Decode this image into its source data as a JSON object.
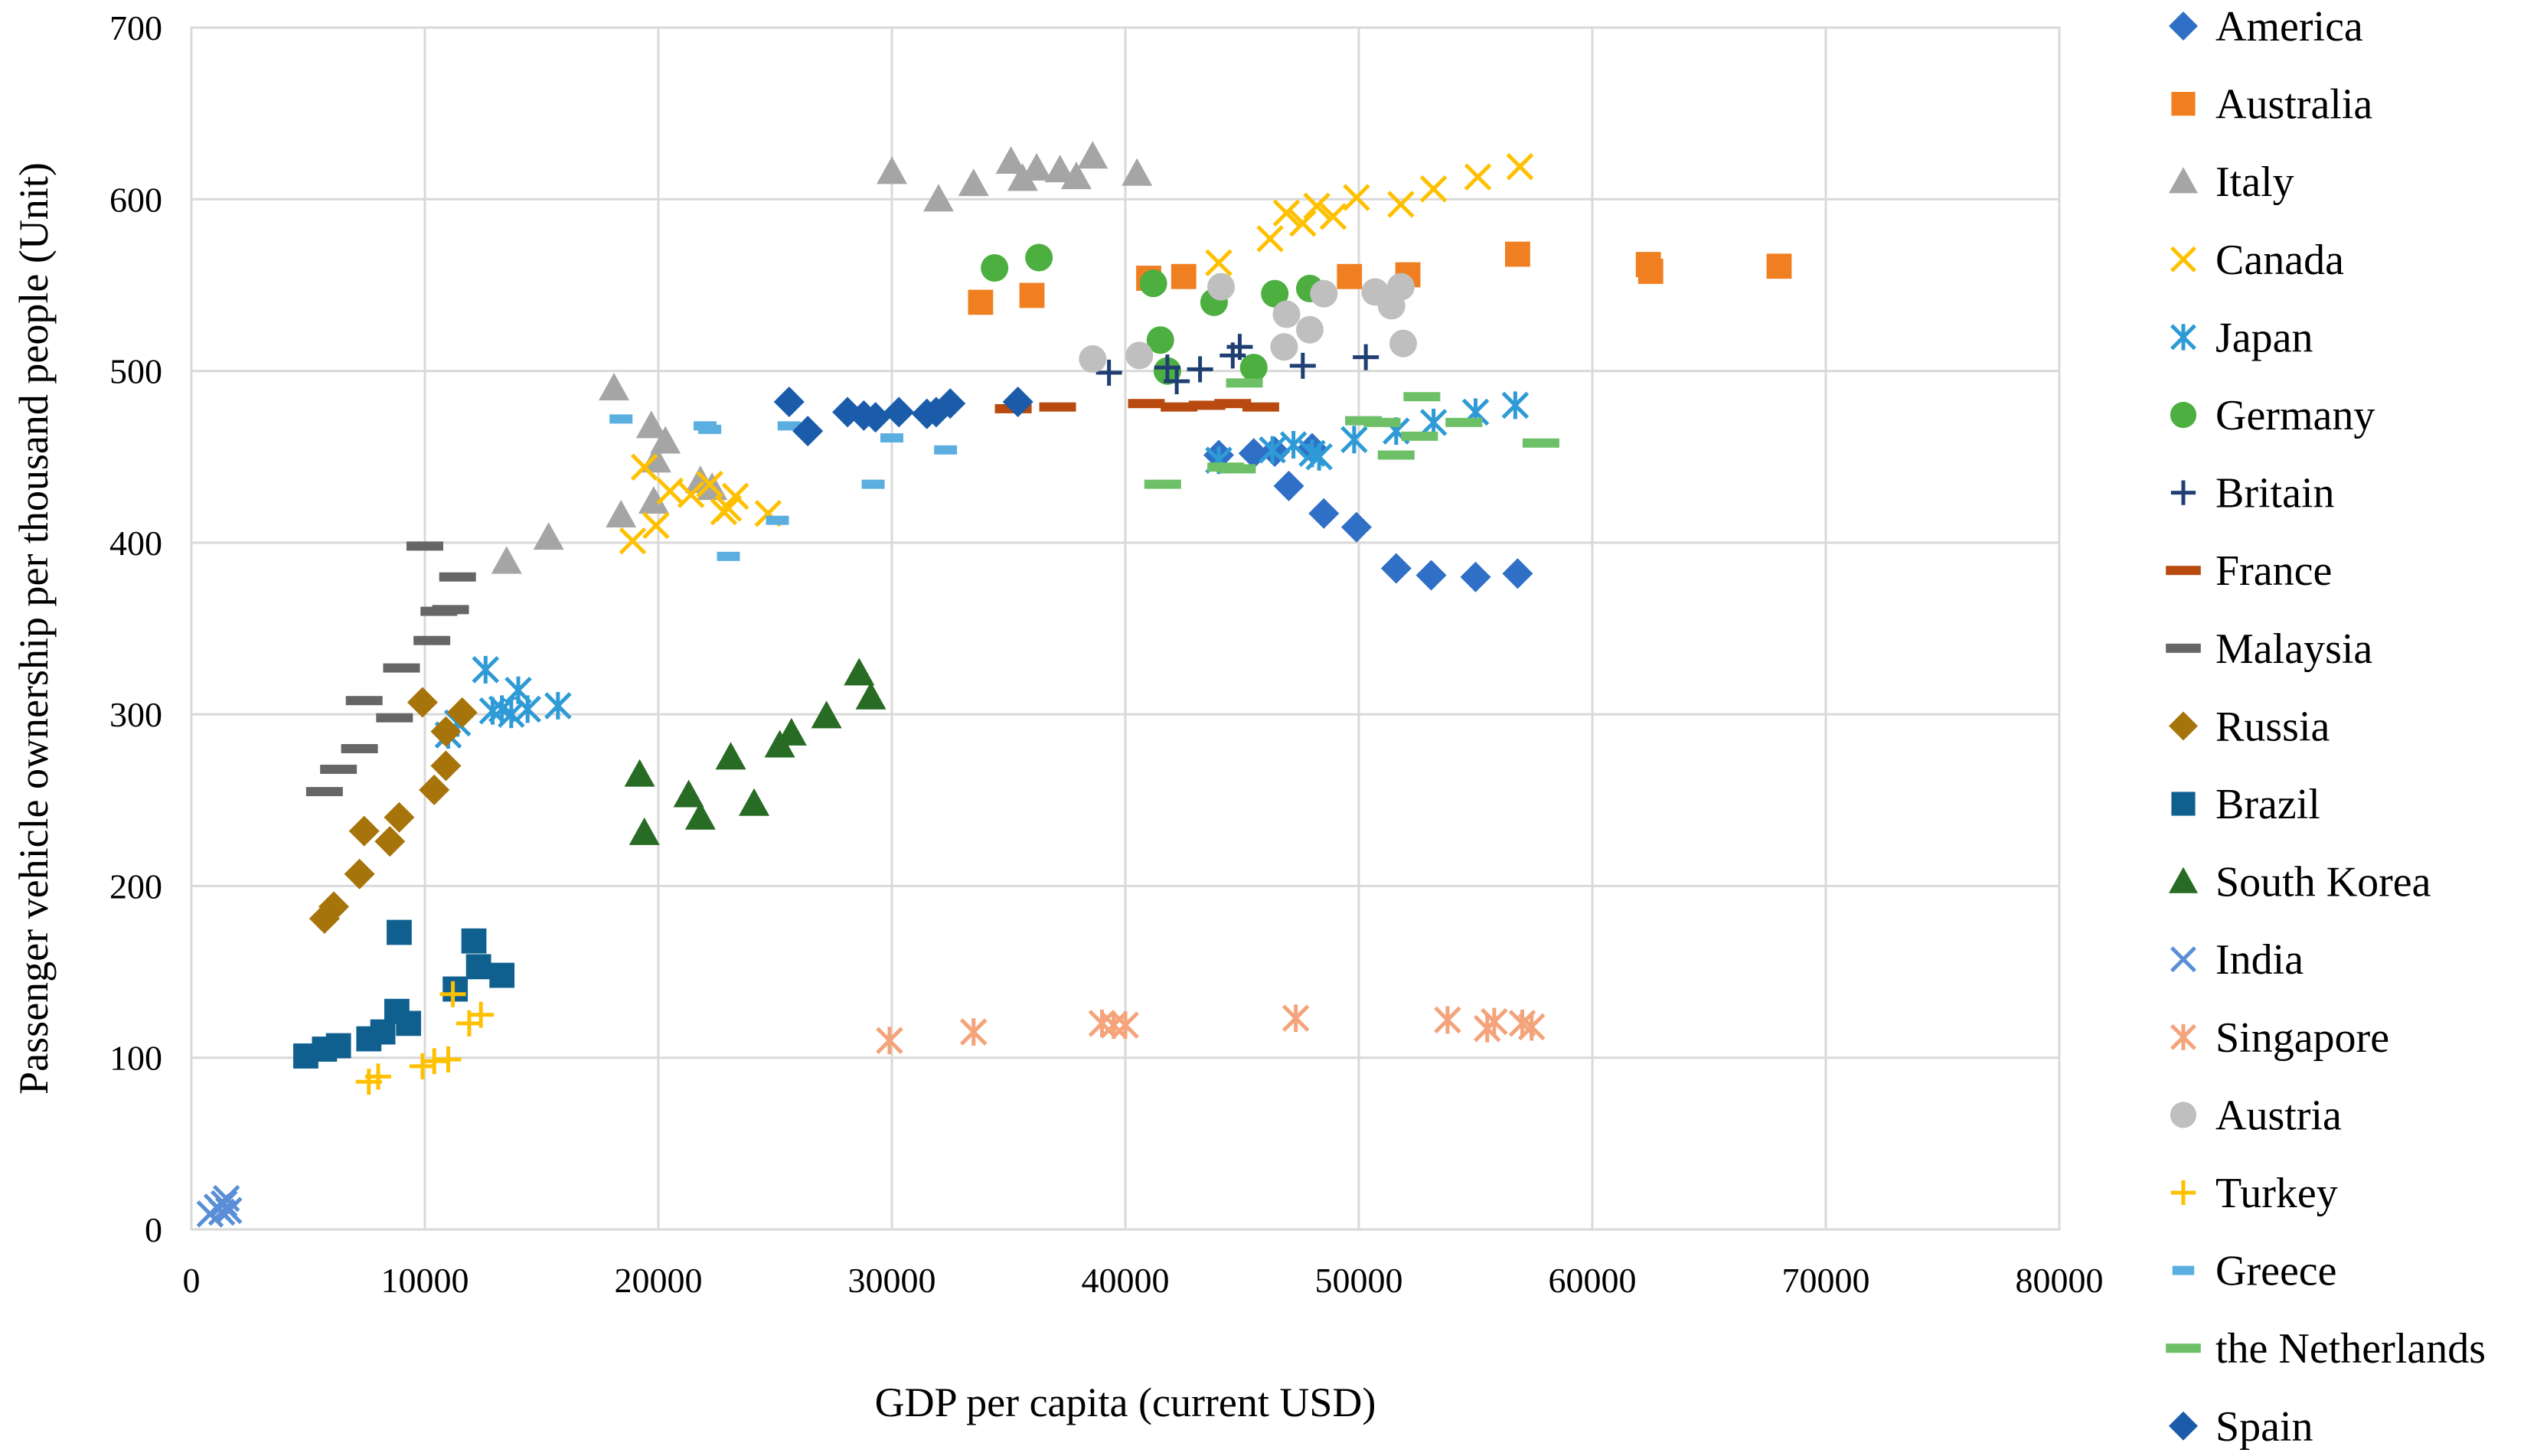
{
  "chart_data": {
    "type": "scatter",
    "title": "",
    "xlabel": "GDP per capita (current USD)",
    "ylabel": "Passenger vehicle ownership per thousand people (Unit)",
    "xlim": [
      0,
      80000
    ],
    "ylim": [
      0,
      700
    ],
    "xticks": [
      0,
      10000,
      20000,
      30000,
      40000,
      50000,
      60000,
      70000,
      80000
    ],
    "yticks": [
      0,
      100,
      200,
      300,
      400,
      500,
      600,
      700
    ],
    "grid": true,
    "legend_position": "right",
    "series": [
      {
        "name": "America",
        "marker": "diamond",
        "color": "#2F6FC6",
        "points": [
          [
            44000,
            451
          ],
          [
            45500,
            452
          ],
          [
            46400,
            453
          ],
          [
            47000,
            433
          ],
          [
            48000,
            455
          ],
          [
            48500,
            417
          ],
          [
            49900,
            409
          ],
          [
            51600,
            385
          ],
          [
            53100,
            381
          ],
          [
            55000,
            380
          ],
          [
            56800,
            382
          ]
        ]
      },
      {
        "name": "Australia",
        "marker": "square",
        "color": "#F07F22",
        "points": [
          [
            33800,
            540
          ],
          [
            36000,
            544
          ],
          [
            41000,
            554
          ],
          [
            42500,
            555
          ],
          [
            49600,
            555
          ],
          [
            52100,
            556
          ],
          [
            56800,
            568
          ],
          [
            62400,
            562
          ],
          [
            62500,
            558
          ],
          [
            68000,
            561
          ]
        ]
      },
      {
        "name": "Italy",
        "marker": "triangle",
        "color": "#A5A5A5",
        "points": [
          [
            18100,
            490
          ],
          [
            18400,
            416
          ],
          [
            19700,
            468
          ],
          [
            19800,
            424
          ],
          [
            19900,
            448
          ],
          [
            20300,
            459
          ],
          [
            21800,
            436
          ],
          [
            22300,
            432
          ],
          [
            13500,
            389
          ],
          [
            15300,
            403
          ],
          [
            30000,
            616
          ],
          [
            32000,
            600
          ],
          [
            33500,
            609
          ],
          [
            35100,
            622
          ],
          [
            35600,
            612
          ],
          [
            36200,
            618
          ],
          [
            37200,
            617
          ],
          [
            37900,
            613
          ],
          [
            38600,
            625
          ],
          [
            40500,
            615
          ]
        ]
      },
      {
        "name": "Canada",
        "marker": "x",
        "color": "#FFC000",
        "points": [
          [
            18900,
            401
          ],
          [
            19400,
            444
          ],
          [
            19900,
            410
          ],
          [
            20500,
            430
          ],
          [
            21400,
            428
          ],
          [
            22200,
            434
          ],
          [
            22800,
            418
          ],
          [
            23000,
            420
          ],
          [
            23300,
            427
          ],
          [
            24700,
            417
          ],
          [
            44000,
            563
          ],
          [
            46200,
            577
          ],
          [
            46900,
            592
          ],
          [
            47600,
            586
          ],
          [
            48200,
            596
          ],
          [
            48900,
            590
          ],
          [
            49900,
            601
          ],
          [
            51800,
            597
          ],
          [
            53200,
            606
          ],
          [
            55100,
            613
          ],
          [
            56900,
            619
          ]
        ]
      },
      {
        "name": "Japan",
        "marker": "asterisk",
        "color": "#2E9BD6",
        "points": [
          [
            11000,
            288
          ],
          [
            11400,
            295
          ],
          [
            12600,
            326
          ],
          [
            12900,
            302
          ],
          [
            13300,
            303
          ],
          [
            13700,
            300
          ],
          [
            14000,
            314
          ],
          [
            14400,
            303
          ],
          [
            15700,
            305
          ],
          [
            44000,
            448
          ],
          [
            46300,
            454
          ],
          [
            47200,
            457
          ],
          [
            48000,
            452
          ],
          [
            48300,
            450
          ],
          [
            49800,
            460
          ],
          [
            51600,
            465
          ],
          [
            53200,
            470
          ],
          [
            55000,
            476
          ],
          [
            56700,
            480
          ]
        ]
      },
      {
        "name": "Germany",
        "marker": "circle",
        "color": "#4CAF3F",
        "points": [
          [
            34400,
            560
          ],
          [
            36300,
            566
          ],
          [
            41200,
            551
          ],
          [
            41500,
            518
          ],
          [
            41800,
            500
          ],
          [
            43800,
            540
          ],
          [
            45500,
            502
          ],
          [
            46400,
            545
          ],
          [
            47900,
            548
          ]
        ]
      },
      {
        "name": "Britain",
        "marker": "plus",
        "color": "#1F3F73",
        "points": [
          [
            39300,
            499
          ],
          [
            41800,
            502
          ],
          [
            42200,
            494
          ],
          [
            43200,
            501
          ],
          [
            44600,
            509
          ],
          [
            44900,
            514
          ],
          [
            47600,
            503
          ],
          [
            50300,
            508
          ]
        ]
      },
      {
        "name": "France",
        "marker": "dash",
        "color": "#B84A10",
        "points": [
          [
            35200,
            478
          ],
          [
            37100,
            479
          ],
          [
            40900,
            481
          ],
          [
            42300,
            479
          ],
          [
            43500,
            480
          ],
          [
            44600,
            481
          ],
          [
            45800,
            479
          ]
        ]
      },
      {
        "name": "Malaysia",
        "marker": "dash",
        "color": "#666666",
        "points": [
          [
            5700,
            255
          ],
          [
            6300,
            268
          ],
          [
            7200,
            280
          ],
          [
            7400,
            308
          ],
          [
            8700,
            298
          ],
          [
            9000,
            327
          ],
          [
            10000,
            398
          ],
          [
            10300,
            343
          ],
          [
            10600,
            360
          ],
          [
            11100,
            361
          ],
          [
            11400,
            380
          ]
        ]
      },
      {
        "name": "Russia",
        "marker": "diamond",
        "color": "#A6740A",
        "points": [
          [
            5700,
            181
          ],
          [
            6100,
            188
          ],
          [
            7200,
            207
          ],
          [
            7400,
            232
          ],
          [
            8500,
            226
          ],
          [
            8900,
            240
          ],
          [
            9900,
            307
          ],
          [
            10400,
            256
          ],
          [
            10900,
            270
          ],
          [
            10900,
            290
          ],
          [
            11600,
            301
          ]
        ]
      },
      {
        "name": "Brazil",
        "marker": "square",
        "color": "#10608F",
        "points": [
          [
            4900,
            101
          ],
          [
            5700,
            105
          ],
          [
            6300,
            107
          ],
          [
            7600,
            111
          ],
          [
            8200,
            115
          ],
          [
            8800,
            127
          ],
          [
            8900,
            173
          ],
          [
            9300,
            120
          ],
          [
            11300,
            140
          ],
          [
            12100,
            168
          ],
          [
            12300,
            153
          ],
          [
            13300,
            148
          ]
        ]
      },
      {
        "name": "South Korea",
        "marker": "triangle",
        "color": "#276B24",
        "points": [
          [
            19200,
            265
          ],
          [
            19400,
            231
          ],
          [
            21300,
            253
          ],
          [
            21800,
            240
          ],
          [
            23100,
            275
          ],
          [
            24100,
            248
          ],
          [
            25200,
            282
          ],
          [
            25700,
            289
          ],
          [
            27200,
            299
          ],
          [
            28600,
            324
          ],
          [
            29100,
            310
          ]
        ]
      },
      {
        "name": "India",
        "marker": "x",
        "color": "#5A8FD8",
        "points": [
          [
            800,
            9
          ],
          [
            1100,
            13
          ],
          [
            1300,
            10
          ],
          [
            1400,
            15
          ],
          [
            1500,
            18
          ],
          [
            1600,
            11
          ]
        ]
      },
      {
        "name": "Singapore",
        "marker": "asterisk",
        "color": "#F4A37A",
        "points": [
          [
            29900,
            110
          ],
          [
            33500,
            115
          ],
          [
            39000,
            120
          ],
          [
            39500,
            119
          ],
          [
            40000,
            119
          ],
          [
            47300,
            123
          ],
          [
            53800,
            122
          ],
          [
            55500,
            117
          ],
          [
            55800,
            121
          ],
          [
            57000,
            120
          ],
          [
            57400,
            118
          ]
        ]
      },
      {
        "name": "Austria",
        "marker": "circle",
        "color": "#BFBFBF",
        "points": [
          [
            38600,
            507
          ],
          [
            40600,
            509
          ],
          [
            44100,
            549
          ],
          [
            46800,
            514
          ],
          [
            46900,
            533
          ],
          [
            47900,
            524
          ],
          [
            48500,
            545
          ],
          [
            50700,
            546
          ],
          [
            51400,
            538
          ],
          [
            51800,
            549
          ],
          [
            51900,
            516
          ]
        ]
      },
      {
        "name": "Turkey",
        "marker": "plus",
        "color": "#FFC000",
        "points": [
          [
            7600,
            86
          ],
          [
            8000,
            89
          ],
          [
            9900,
            95
          ],
          [
            10400,
            98
          ],
          [
            11000,
            99
          ],
          [
            11200,
            137
          ],
          [
            11900,
            120
          ],
          [
            12400,
            125
          ]
        ]
      },
      {
        "name": "Greece",
        "marker": "smalldash",
        "color": "#5AAFE0",
        "points": [
          [
            18400,
            472
          ],
          [
            22000,
            468
          ],
          [
            22200,
            466
          ],
          [
            23000,
            392
          ],
          [
            25100,
            413
          ],
          [
            25600,
            468
          ],
          [
            29200,
            434
          ],
          [
            30000,
            461
          ],
          [
            32300,
            454
          ]
        ]
      },
      {
        "name": "the Netherlands",
        "marker": "dash",
        "color": "#6DC067",
        "points": [
          [
            41600,
            434
          ],
          [
            44300,
            444
          ],
          [
            44800,
            443
          ],
          [
            45100,
            493
          ],
          [
            50200,
            471
          ],
          [
            51000,
            470
          ],
          [
            51600,
            451
          ],
          [
            52600,
            462
          ],
          [
            52700,
            485
          ],
          [
            54500,
            470
          ],
          [
            57800,
            458
          ]
        ]
      },
      {
        "name": "Spain",
        "marker": "diamond",
        "color": "#1B5CAA",
        "points": [
          [
            25600,
            482
          ],
          [
            26400,
            465
          ],
          [
            28100,
            476
          ],
          [
            28800,
            474
          ],
          [
            29300,
            473
          ],
          [
            30300,
            476
          ],
          [
            31500,
            475
          ],
          [
            31900,
            476
          ],
          [
            32500,
            481
          ],
          [
            35400,
            482
          ]
        ]
      }
    ]
  }
}
